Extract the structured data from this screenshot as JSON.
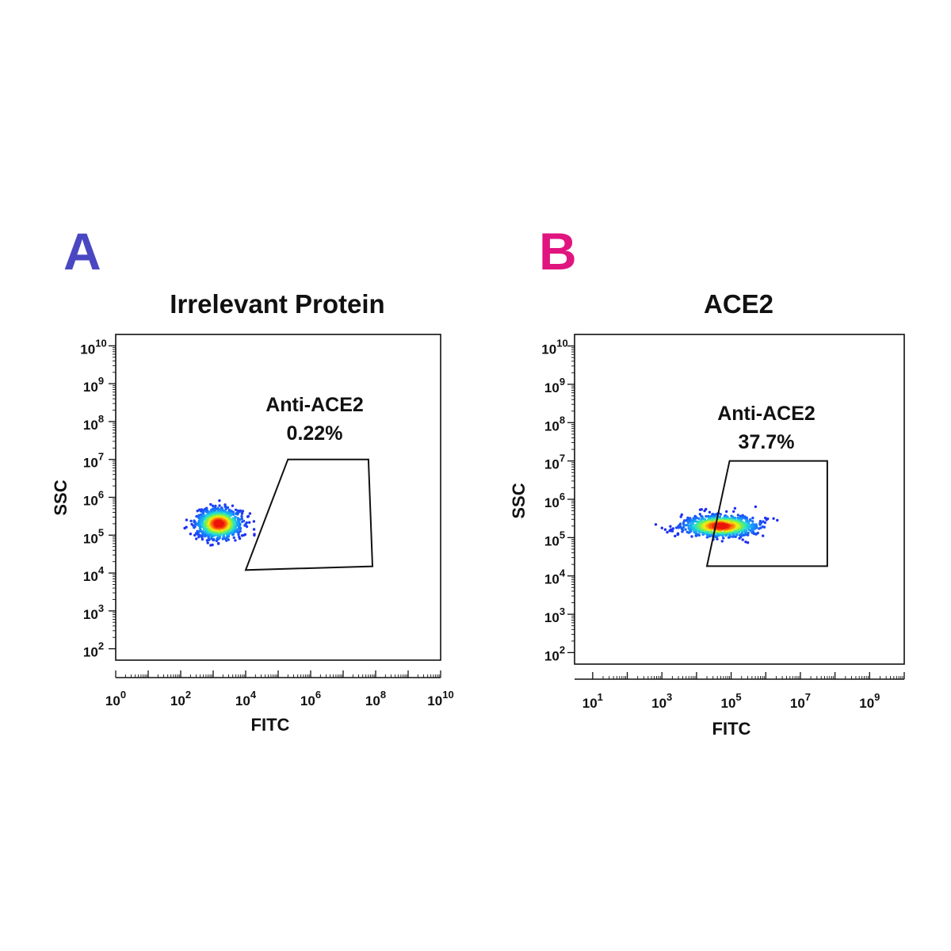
{
  "chart_data": [
    {
      "type": "scatter",
      "panel_label": "A",
      "panel_label_color": "#4a47c2",
      "title": "Irrelevant Protein",
      "xlabel": "FITC",
      "ylabel": "SSC",
      "x_scale": "log",
      "y_scale": "log",
      "xlim": [
        1,
        10000000000
      ],
      "ylim": [
        50,
        20000000000
      ],
      "x_tick_labels": [
        "10^0",
        "10^2",
        "10^4",
        "10^6",
        "10^8",
        "10^10"
      ],
      "y_tick_labels": [
        "10^2",
        "10^3",
        "10^4",
        "10^5",
        "10^6",
        "10^7",
        "10^8",
        "10^9",
        "10^10"
      ],
      "gate": {
        "name": "Anti-ACE2",
        "percent": "0.22%",
        "vertices": [
          [
            200000,
            10000000
          ],
          [
            60000000,
            10000000
          ],
          [
            80000000,
            15000
          ],
          [
            10000,
            12000
          ]
        ]
      },
      "population": {
        "center_fitc": 1500,
        "center_ssc": 200000,
        "spread_fitc_decades": 0.35,
        "spread_ssc_decades": 0.2,
        "positive_fraction_percent": 0.22
      }
    },
    {
      "type": "scatter",
      "panel_label": "B",
      "panel_label_color": "#e0157f",
      "title": "ACE2",
      "xlabel": "FITC",
      "ylabel": "SSC",
      "x_scale": "log",
      "y_scale": "log",
      "xlim": [
        3,
        10000000000
      ],
      "ylim": [
        50,
        20000000000
      ],
      "x_tick_labels": [
        "10^1",
        "10^3",
        "10^5",
        "10^7",
        "10^9"
      ],
      "y_tick_labels": [
        "10^2",
        "10^3",
        "10^4",
        "10^5",
        "10^6",
        "10^7",
        "10^8",
        "10^9",
        "10^10"
      ],
      "gate": {
        "name": "Anti-ACE2",
        "percent": "37.7%",
        "vertices": [
          [
            90000,
            10000000
          ],
          [
            60000000,
            10000000
          ],
          [
            60000000,
            18000
          ],
          [
            20000,
            18000
          ]
        ]
      },
      "population": {
        "center_fitc": 50000,
        "center_ssc": 200000,
        "spread_fitc_decades": 0.55,
        "spread_ssc_decades": 0.14,
        "positive_fraction_percent": 37.7
      }
    }
  ]
}
